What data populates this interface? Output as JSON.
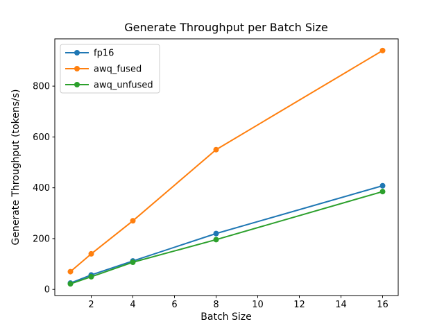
{
  "figure": {
    "background": "#ffffff",
    "text_color": "#000000",
    "spine_color": "#000000",
    "legend_border_color": "#cccccc"
  },
  "chart_data": {
    "type": "line",
    "title": "Generate Throughput per Batch Size",
    "xlabel": "Batch Size",
    "ylabel": "Generate Throughput (tokens/s)",
    "x": [
      1,
      2,
      4,
      8,
      16
    ],
    "series": [
      {
        "name": "fp16",
        "color": "#1f77b4",
        "values": [
          25,
          57,
          112,
          220,
          408
        ]
      },
      {
        "name": "awq_fused",
        "color": "#ff7f0e",
        "values": [
          70,
          140,
          270,
          550,
          940
        ]
      },
      {
        "name": "awq_unfused",
        "color": "#2ca02c",
        "values": [
          22,
          50,
          107,
          196,
          385
        ]
      }
    ],
    "x_ticks": [
      2,
      4,
      6,
      8,
      10,
      12,
      14,
      16
    ],
    "y_ticks": [
      0,
      200,
      400,
      600,
      800
    ],
    "xlim": [
      0.25,
      16.75
    ],
    "ylim": [
      -24,
      986
    ],
    "grid": false,
    "legend_position": "upper left",
    "marker": "circle"
  }
}
